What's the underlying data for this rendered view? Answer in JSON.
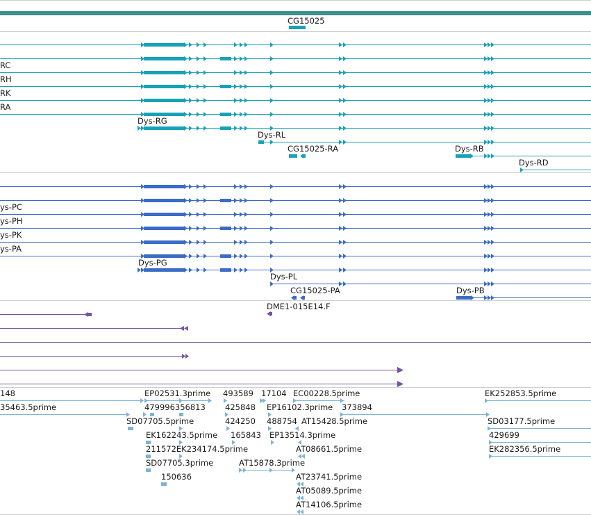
{
  "colors": {
    "gene": "#18a2b8",
    "gene_top_bar": "#3d908f",
    "protein": "#3a6cc6",
    "cdna": "#7454a2",
    "est": "#7cb4d8",
    "divider": "#cfcfcf",
    "text": "#1a1a1a"
  },
  "gene_track": {
    "name": "gene-track",
    "labels": [
      {
        "id": "gene-label-cg15025",
        "text": "CG15025"
      },
      {
        "id": "gene-label-rc",
        "text": "RC"
      },
      {
        "id": "gene-label-rh",
        "text": "RH"
      },
      {
        "id": "gene-label-rk",
        "text": "RK"
      },
      {
        "id": "gene-label-ra",
        "text": "RA"
      },
      {
        "id": "gene-label-dys-rg",
        "text": "Dys-RG"
      },
      {
        "id": "gene-label-dys-rl",
        "text": "Dys-RL"
      },
      {
        "id": "gene-label-cg15025-ra",
        "text": "CG15025-RA"
      },
      {
        "id": "gene-label-dys-rb",
        "text": "Dys-RB"
      },
      {
        "id": "gene-label-dys-rd",
        "text": "Dys-RD"
      }
    ]
  },
  "protein_track": {
    "name": "protein-track",
    "labels": [
      {
        "id": "protein-label-dys-pc",
        "text": "ys-PC"
      },
      {
        "id": "protein-label-dys-ph",
        "text": "ys-PH"
      },
      {
        "id": "protein-label-dys-pk",
        "text": "ys-PK"
      },
      {
        "id": "protein-label-dys-pa",
        "text": "ys-PA"
      },
      {
        "id": "protein-label-dys-pg",
        "text": "Dys-PG"
      },
      {
        "id": "protein-label-dys-pl",
        "text": "Dys-PL"
      },
      {
        "id": "protein-label-cg15025-pa",
        "text": "CG15025-PA"
      },
      {
        "id": "protein-label-dys-pb",
        "text": "Dys-PB"
      }
    ]
  },
  "cdna_track": {
    "name": "cdna-track",
    "labels": [
      {
        "id": "cdna-label-dme1",
        "text": "DME1-015E14.F"
      }
    ]
  },
  "est_track": {
    "name": "est-track",
    "labels": [
      {
        "id": "est-label-148",
        "text": "148"
      },
      {
        "id": "est-label-35463",
        "text": "35463.5prime"
      },
      {
        "id": "est-label-ep02531",
        "text": "EP02531.3prime"
      },
      {
        "id": "est-label-479996356813",
        "text": "479996356813"
      },
      {
        "id": "est-label-sd07705-5",
        "text": "SD07705.5prime"
      },
      {
        "id": "est-label-ek162243",
        "text": "EK162243.5prime"
      },
      {
        "id": "est-label-211572",
        "text": "211572EK234174.5prime"
      },
      {
        "id": "est-label-sd07705-3",
        "text": "SD07705.3prime"
      },
      {
        "id": "est-label-150636",
        "text": "150636"
      },
      {
        "id": "est-label-493589",
        "text": "493589"
      },
      {
        "id": "est-label-425848",
        "text": "425848"
      },
      {
        "id": "est-label-424250",
        "text": "424250"
      },
      {
        "id": "est-label-165843",
        "text": "165843"
      },
      {
        "id": "est-label-17104",
        "text": "17104"
      },
      {
        "id": "est-label-ep16102",
        "text": "EP16102.3prime"
      },
      {
        "id": "est-label-488754",
        "text": "488754"
      },
      {
        "id": "est-label-ep135",
        "text": "EP13514.3prime"
      },
      {
        "id": "est-label-at15878",
        "text": "AT15878.3prime"
      },
      {
        "id": "est-label-ec00228",
        "text": "EC00228.5prime"
      },
      {
        "id": "est-label-373894",
        "text": "373894"
      },
      {
        "id": "est-label-at15428",
        "text": "AT15428.5prime"
      },
      {
        "id": "est-label-at08661",
        "text": "AT08661.5prime"
      },
      {
        "id": "est-label-at23741",
        "text": "AT23741.5prime"
      },
      {
        "id": "est-label-at05089",
        "text": "AT05089.5prime"
      },
      {
        "id": "est-label-at14106",
        "text": "AT14106.5prime"
      },
      {
        "id": "est-label-ek252853",
        "text": "EK252853.5prime"
      },
      {
        "id": "est-label-sd03177",
        "text": "SD03177.5prime"
      },
      {
        "id": "est-label-429699",
        "text": "429699"
      },
      {
        "id": "est-label-ek282356",
        "text": "EK282356.5prime"
      }
    ]
  }
}
